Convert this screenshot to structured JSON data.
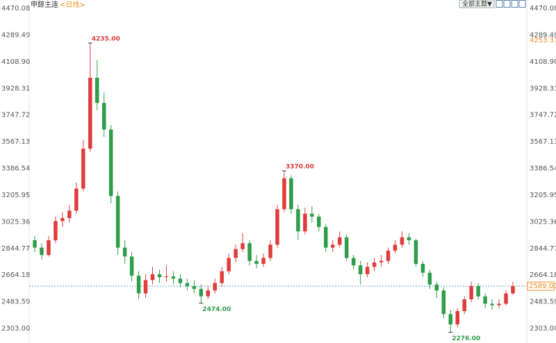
{
  "header": {
    "title": "甲醇主连",
    "period": "<日线>",
    "theme_button": "全部主题▼"
  },
  "chart_data": {
    "type": "candlestick",
    "open": [
      2900,
      2850,
      2800,
      2900,
      3030,
      3050,
      3100,
      3250,
      3520,
      4000,
      3830,
      3650,
      3200,
      2850,
      2790,
      2660,
      2540,
      2630,
      2670,
      2650,
      2655,
      2640,
      2610,
      2590,
      2570,
      2520,
      2560,
      2610,
      2690,
      2780,
      2840,
      2880,
      2760,
      2740,
      2780,
      2870,
      3110,
      3320,
      3110,
      2960,
      3080,
      3060,
      2990,
      2850,
      2870,
      2920,
      2780,
      2730,
      2670,
      2720,
      2750,
      2760,
      2830,
      2870,
      2920,
      2900,
      2740,
      2680,
      2600,
      2560,
      2400,
      2330,
      2420,
      2500,
      2590,
      2520,
      2470,
      2460,
      2470,
      2540
    ],
    "high": [
      2930,
      2880,
      2930,
      3060,
      3090,
      3140,
      3290,
      3580,
      4235,
      4120,
      3900,
      3680,
      3230,
      2900,
      2820,
      2690,
      2670,
      2720,
      2700,
      2730,
      2690,
      2670,
      2640,
      2630,
      2600,
      2590,
      2640,
      2720,
      2810,
      2870,
      2950,
      2900,
      2800,
      2810,
      2900,
      3140,
      3370,
      3340,
      3140,
      3120,
      3130,
      3080,
      3010,
      2900,
      2960,
      2940,
      2800,
      2760,
      2750,
      2780,
      2800,
      2850,
      2900,
      2960,
      2950,
      2910,
      2760,
      2700,
      2620,
      2580,
      2430,
      2440,
      2520,
      2620,
      2610,
      2540,
      2500,
      2500,
      2560,
      2620
    ],
    "low": [
      2820,
      2770,
      2790,
      2880,
      2990,
      3020,
      3080,
      3230,
      3500,
      3780,
      3600,
      3150,
      2800,
      2740,
      2620,
      2500,
      2510,
      2600,
      2610,
      2620,
      2600,
      2580,
      2560,
      2540,
      2474,
      2500,
      2540,
      2590,
      2670,
      2750,
      2820,
      2730,
      2710,
      2720,
      2760,
      2850,
      3090,
      3080,
      2900,
      2940,
      3020,
      2960,
      2820,
      2820,
      2850,
      2760,
      2700,
      2600,
      2650,
      2690,
      2720,
      2740,
      2810,
      2850,
      2870,
      2720,
      2650,
      2570,
      2510,
      2370,
      2276,
      2310,
      2400,
      2480,
      2500,
      2440,
      2430,
      2440,
      2460,
      2530
    ],
    "close": [
      2850,
      2800,
      2900,
      3030,
      3050,
      3100,
      3250,
      3520,
      4000,
      3830,
      3650,
      3200,
      2850,
      2790,
      2660,
      2540,
      2630,
      2670,
      2650,
      2655,
      2640,
      2610,
      2590,
      2570,
      2520,
      2560,
      2610,
      2690,
      2780,
      2840,
      2880,
      2760,
      2740,
      2780,
      2870,
      3110,
      3320,
      3110,
      2960,
      3080,
      3060,
      2990,
      2850,
      2870,
      2920,
      2780,
      2730,
      2670,
      2720,
      2750,
      2760,
      2830,
      2870,
      2920,
      2900,
      2740,
      2680,
      2600,
      2560,
      2400,
      2330,
      2420,
      2500,
      2590,
      2520,
      2470,
      2460,
      2470,
      2540,
      2589
    ],
    "up_color": "#e03c3c",
    "down_color": "#2e9e4a",
    "ylim": [
      2303,
      4470.08
    ],
    "yticks": [
      4470.08,
      4289.49,
      {
        "value": 4108.9,
        "label": "4108.90"
      },
      3928.31,
      3747.72,
      3567.13,
      3386.54,
      3205.95,
      3025.36,
      2844.77,
      2664.18,
      2483.59,
      {
        "value": 2303,
        "label": "2303.00"
      }
    ],
    "annotations": [
      {
        "value": 4235,
        "label": "4235.00"
      },
      {
        "value": 3370,
        "label": "3370.00"
      },
      {
        "value": 2474,
        "label": "2474.00"
      },
      {
        "value": 2276,
        "label": "2276.00"
      }
    ],
    "last_price": {
      "value": 2589,
      "label": "2589.00"
    },
    "reference_price": {
      "value": 4253.37,
      "label": "4253.37"
    }
  }
}
